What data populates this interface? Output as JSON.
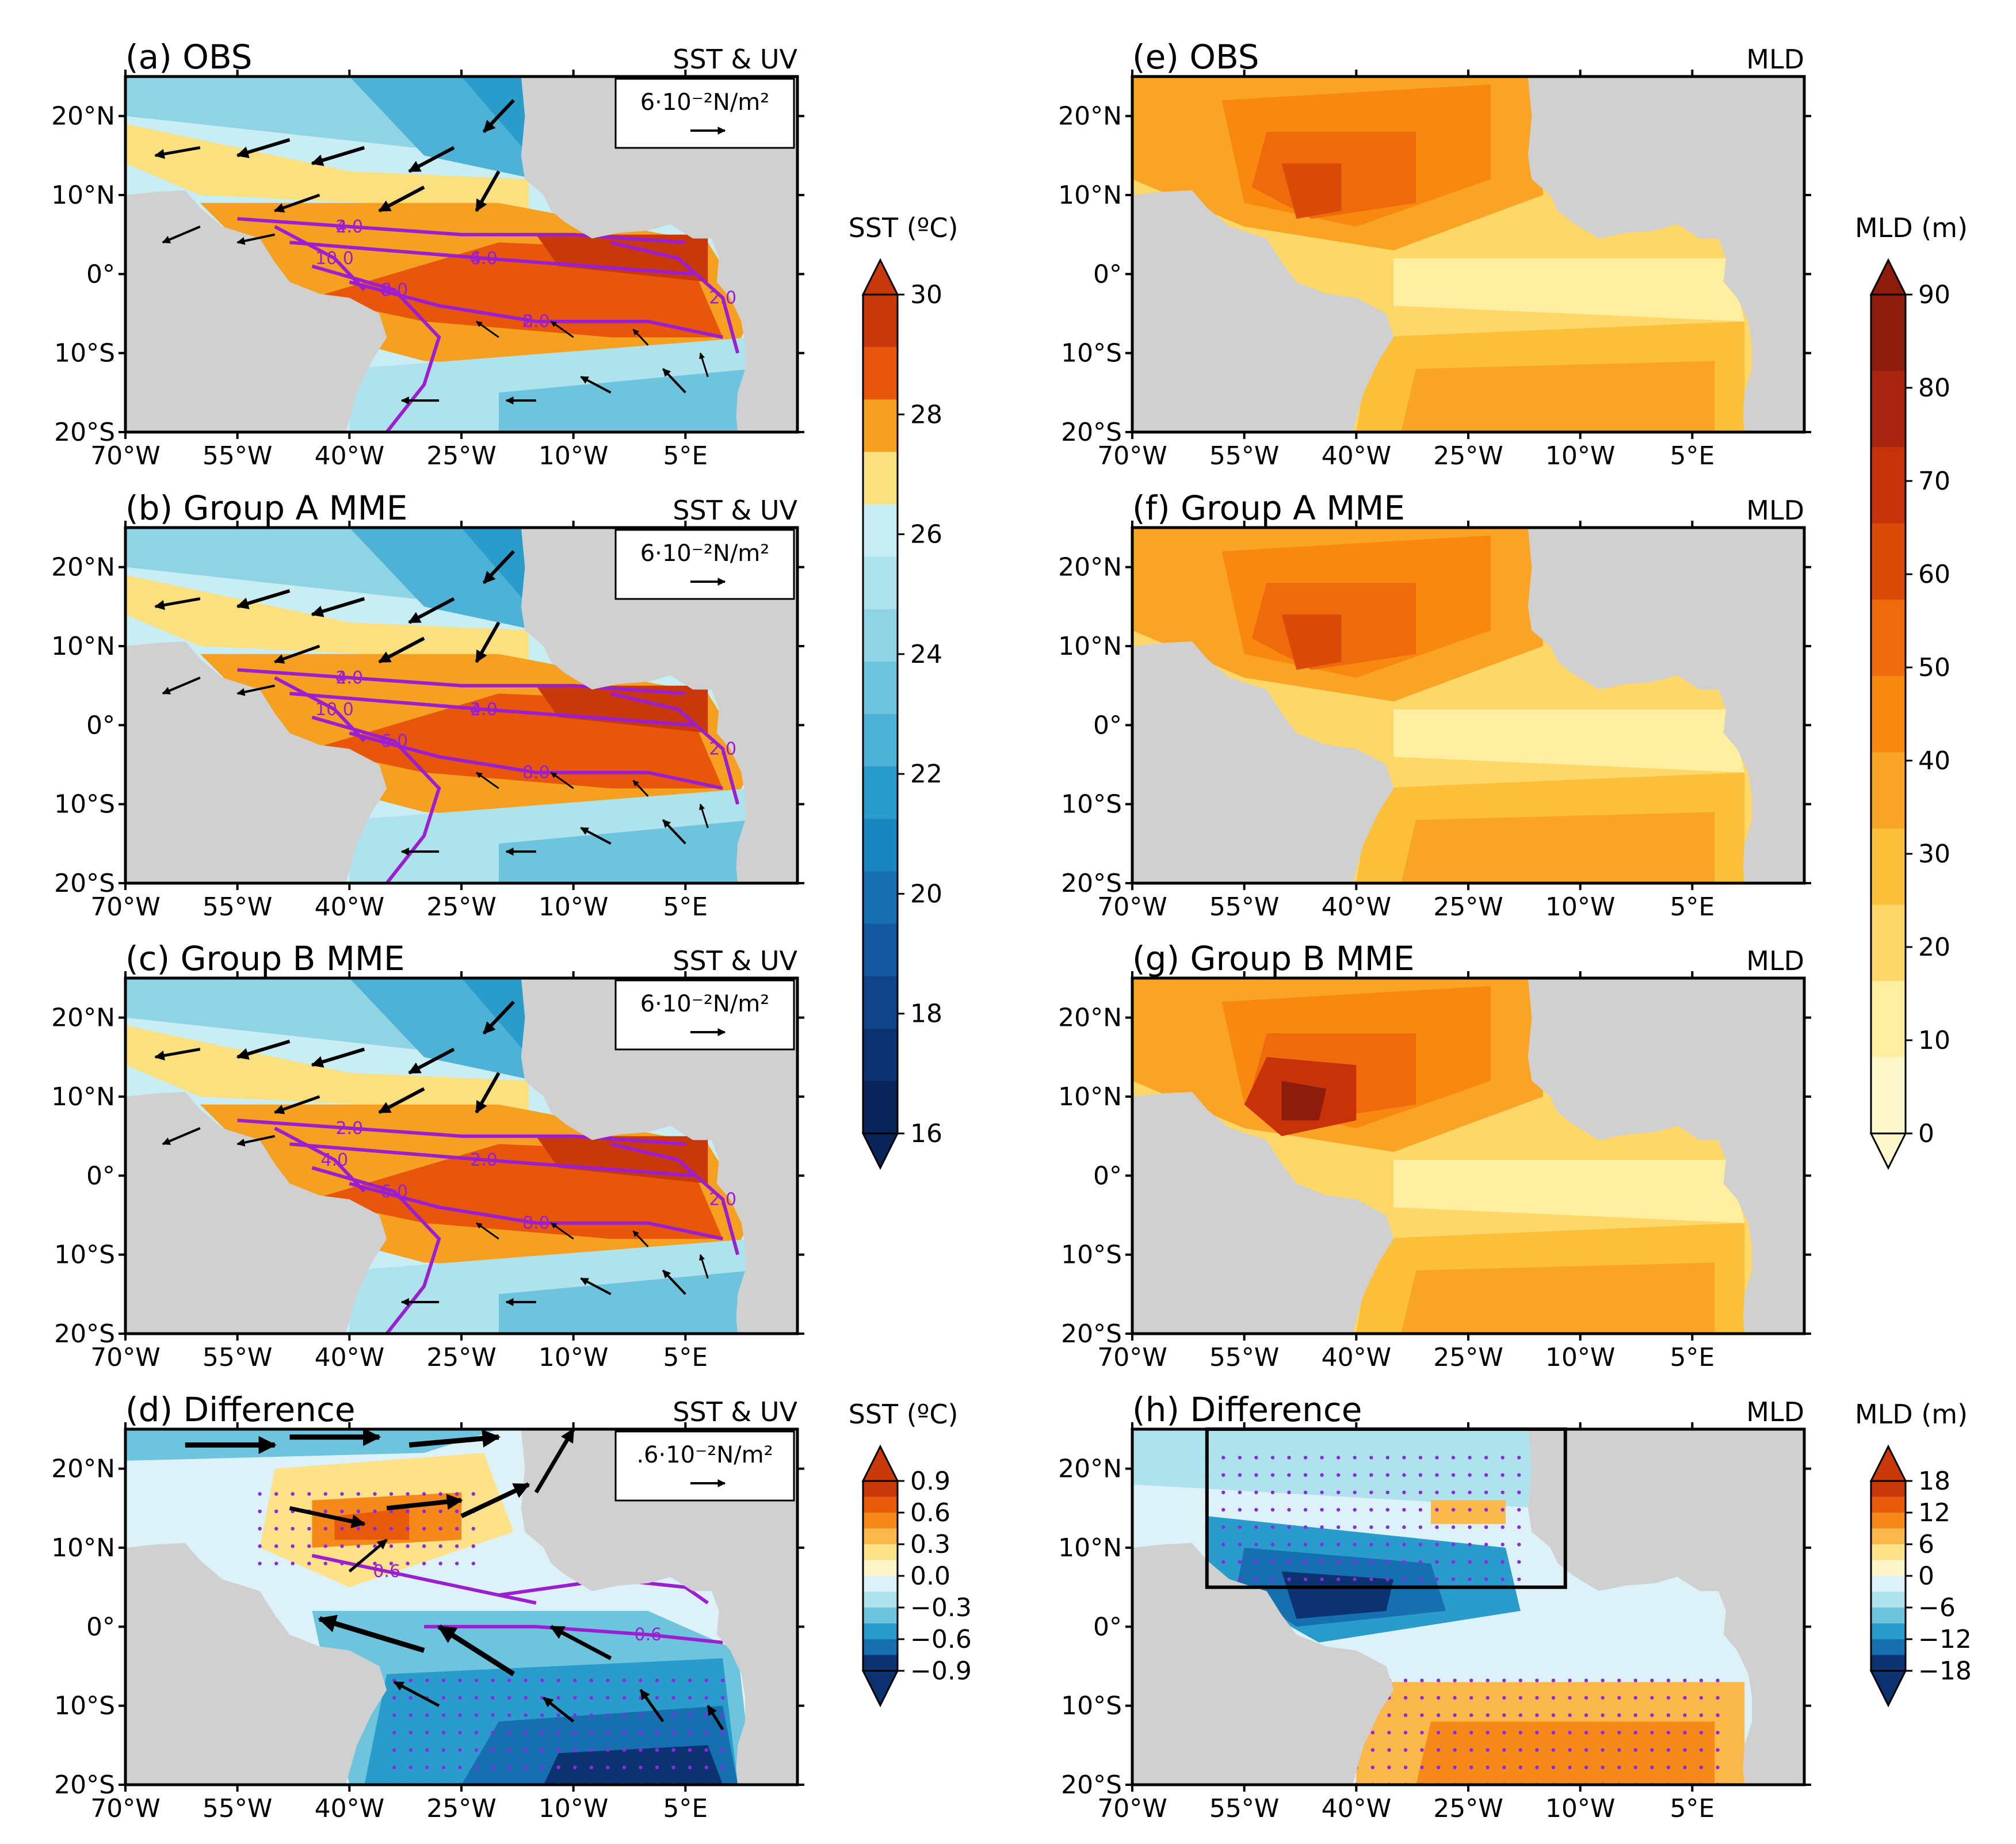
{
  "colors": {
    "land": "#d0d0d0",
    "frame": "#000000",
    "contour": "#9b1fd0",
    "stipple": "#8a2be2",
    "arrow": "#000000"
  },
  "axes": {
    "lat_ticks": [
      "20°N",
      "10°N",
      "0°",
      "10°S",
      "20°S"
    ],
    "lon_ticks": [
      "70°W",
      "55°W",
      "40°W",
      "25°W",
      "10°W",
      "5°E"
    ]
  },
  "panels": [
    {
      "id": "a",
      "title": "(a) OBS",
      "variable": "SST & UV",
      "ref_vector": "6·10⁻²N/m²",
      "field": "sst"
    },
    {
      "id": "b",
      "title": "(b) Group A MME",
      "variable": "SST & UV",
      "ref_vector": "6·10⁻²N/m²",
      "field": "sst"
    },
    {
      "id": "c",
      "title": "(c) Group B MME",
      "variable": "SST & UV",
      "ref_vector": "6·10⁻²N/m²",
      "field": "sst"
    },
    {
      "id": "d",
      "title": "(d) Difference",
      "variable": "SST & UV",
      "ref_vector": ".6·10⁻²N/m²",
      "field": "sstdiff"
    },
    {
      "id": "e",
      "title": "(e) OBS",
      "variable": "MLD",
      "field": "mld"
    },
    {
      "id": "f",
      "title": "(f) Group A MME",
      "variable": "MLD",
      "field": "mld"
    },
    {
      "id": "g",
      "title": "(g) Group B MME",
      "variable": "MLD",
      "field": "mld"
    },
    {
      "id": "h",
      "title": "(h) Difference",
      "variable": "MLD",
      "field": "mlddiff"
    }
  ],
  "contour_labels": {
    "a": [
      "2.0",
      "4.0",
      "6.0",
      "8.0",
      "10.0",
      "2.0",
      "4.0",
      "6.0",
      "8.0",
      "2.0"
    ],
    "b": [
      "2.0",
      "4.0",
      "6.0",
      "8.0",
      "10.0",
      "2.0",
      "4.0",
      "2.0",
      "6.0"
    ],
    "c": [
      "2.0",
      "2.0",
      "6.0",
      "8.0",
      "4.0",
      "2.0",
      "2.0",
      "2.0"
    ],
    "d": [
      "0.6",
      "0.6"
    ]
  },
  "colorbars": {
    "sst": {
      "label": "SST (ºC)",
      "ticks": [
        "30",
        "28",
        "26",
        "24",
        "22",
        "20",
        "18",
        "16"
      ],
      "colors": [
        "#c8380a",
        "#e8560c",
        "#f5a020",
        "#fbe080",
        "#c8eef4",
        "#aee2ec",
        "#8fd4e4",
        "#6ec4dc",
        "#4eb2d6",
        "#2a9ccc",
        "#1a86c0",
        "#1670b0",
        "#1358a0",
        "#10448a",
        "#0c3272",
        "#082458"
      ]
    },
    "sst_diff": {
      "label": "SST (ºC)",
      "ticks": [
        "0.9",
        "0.6",
        "0.3",
        "0.0",
        "−0.3",
        "−0.6",
        "−0.9"
      ],
      "colors": [
        "#c8380a",
        "#e85a0c",
        "#f58a1a",
        "#fbb84a",
        "#fde28a",
        "#fdf6c8",
        "#ddf2f8",
        "#aee2ec",
        "#6ec4dc",
        "#2a9ccc",
        "#1670b0",
        "#0c3272"
      ]
    },
    "mld": {
      "label": "MLD (m)",
      "ticks": [
        "90",
        "80",
        "70",
        "60",
        "50",
        "40",
        "30",
        "20",
        "10",
        "0"
      ],
      "colors": [
        "#8e1c0c",
        "#a82410",
        "#c8320a",
        "#dc4a0a",
        "#ee6a0c",
        "#f8880e",
        "#f9a424",
        "#fbbf3a",
        "#fdd868",
        "#feeea0",
        "#fff8cc"
      ]
    },
    "mld_diff": {
      "label": "MLD (m)",
      "ticks": [
        "18",
        "12",
        "6",
        "0",
        "−6",
        "−12",
        "−18"
      ],
      "colors": [
        "#c8380a",
        "#e85a0c",
        "#f58a1a",
        "#fbb84a",
        "#fde28a",
        "#fdf6c8",
        "#ddf2f8",
        "#aee2ec",
        "#6ec4dc",
        "#2a9ccc",
        "#1670b0",
        "#0c3272"
      ]
    }
  }
}
